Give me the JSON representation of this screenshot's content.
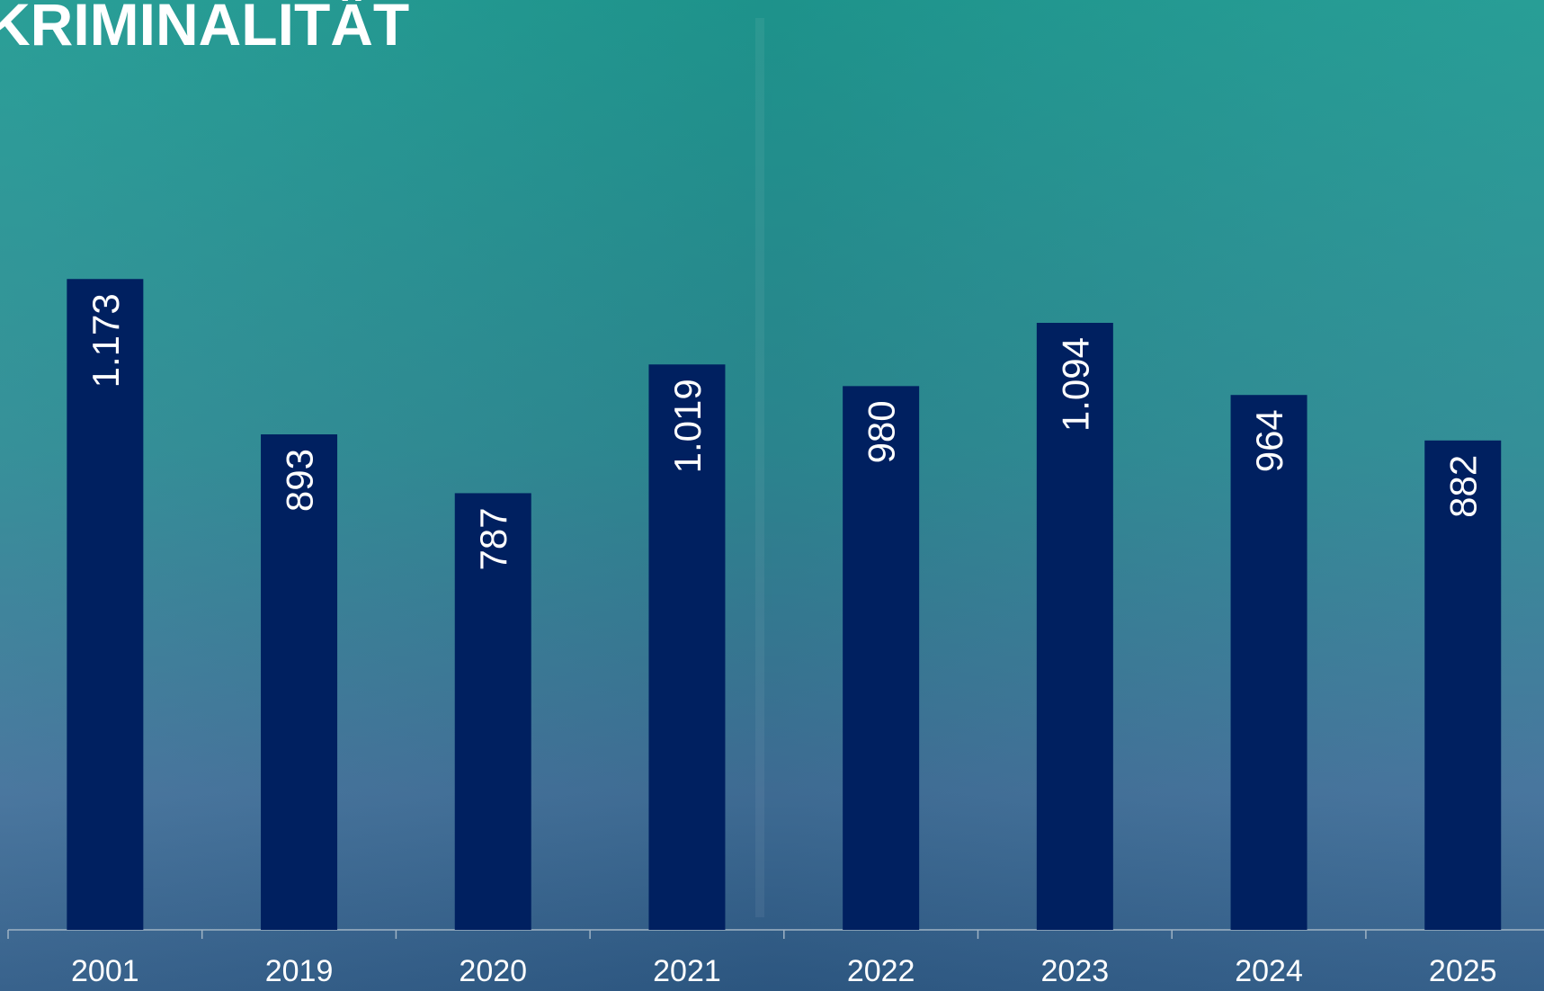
{
  "chart_data": {
    "type": "bar",
    "title": "KRIMINALITÄT",
    "categories": [
      "2001",
      "2019",
      "2020",
      "2021",
      "2022",
      "2023",
      "2024",
      "2025"
    ],
    "values": [
      1173,
      893,
      787,
      1019,
      980,
      1094,
      964,
      882
    ],
    "value_labels": [
      "1.173",
      "893",
      "787",
      "1.019",
      "980",
      "1.094",
      "964",
      "882"
    ],
    "color": "#002060",
    "ylim": [
      0,
      1200
    ]
  }
}
